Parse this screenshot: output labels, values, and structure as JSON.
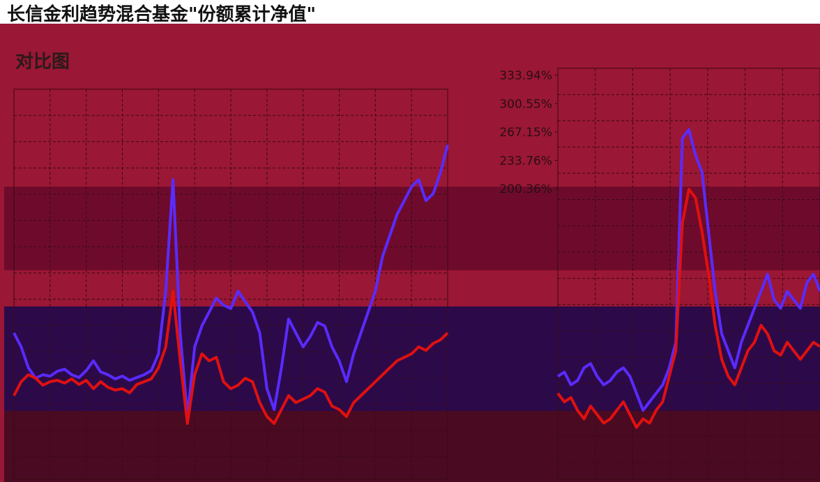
{
  "title": "长信金利趋势混合基金\"份额累计净值\"",
  "subtitle": "对比图",
  "colors": {
    "background": "#9a1735",
    "grid": "#3a0a14",
    "series_fund": "#5a2bff",
    "series_benchmark": "#e01010"
  },
  "chart_data": [
    {
      "type": "line",
      "title": "",
      "xlabel": "",
      "ylabel": "",
      "grid": true,
      "ylim": [
        -100,
        400
      ],
      "x": [
        0,
        1,
        2,
        3,
        4,
        5,
        6,
        7,
        8,
        9,
        10,
        11,
        12,
        13,
        14,
        15,
        16,
        17,
        18,
        19,
        20,
        21,
        22,
        23,
        24,
        25,
        26,
        27,
        28,
        29,
        30,
        31,
        32,
        33,
        34,
        35,
        36,
        37,
        38,
        39,
        40,
        41,
        42,
        43,
        44,
        45,
        46,
        47,
        48,
        49,
        50,
        51,
        52,
        53,
        54,
        55,
        56,
        57,
        58,
        59,
        60
      ],
      "series": [
        {
          "values": [
            60,
            40,
            10,
            -5,
            0,
            -2,
            5,
            8,
            0,
            -4,
            6,
            20,
            4,
            0,
            -6,
            -2,
            -8,
            -4,
            0,
            6,
            30,
            120,
            280,
            60,
            -60,
            40,
            70,
            90,
            110,
            100,
            95,
            120,
            105,
            90,
            60,
            -20,
            -50,
            10,
            80,
            60,
            40,
            55,
            75,
            70,
            40,
            20,
            -10,
            30,
            60,
            90,
            120,
            170,
            200,
            230,
            250,
            270,
            280,
            250,
            260,
            290,
            330
          ]
        },
        {
          "values": [
            -30,
            -10,
            0,
            -5,
            -15,
            -10,
            -8,
            -12,
            -6,
            -14,
            -8,
            -20,
            -10,
            -18,
            -22,
            -20,
            -26,
            -14,
            -10,
            -6,
            10,
            40,
            120,
            20,
            -70,
            0,
            30,
            20,
            25,
            -10,
            -20,
            -15,
            -5,
            -10,
            -40,
            -60,
            -70,
            -50,
            -30,
            -40,
            -35,
            -30,
            -20,
            -25,
            -45,
            -50,
            -60,
            -40,
            -30,
            -20,
            -10,
            0,
            10,
            20,
            25,
            30,
            40,
            35,
            45,
            50,
            60
          ]
        }
      ]
    },
    {
      "type": "line",
      "title": "",
      "xlabel": "",
      "ylabel": "",
      "grid": true,
      "ylim": [
        -100,
        333.94
      ],
      "yticks": [
        "333.94%",
        "300.55%",
        "267.15%",
        "233.76%",
        "200.36%"
      ],
      "x": [
        0,
        1,
        2,
        3,
        4,
        5,
        6,
        7,
        8,
        9,
        10,
        11,
        12,
        13,
        14,
        15,
        16,
        17,
        18,
        19,
        20,
        21,
        22,
        23,
        24,
        25,
        26,
        27,
        28,
        29,
        30,
        31,
        32,
        33,
        34,
        35,
        36,
        37,
        38,
        39,
        40
      ],
      "series": [
        {
          "values": [
            -20,
            -15,
            -30,
            -25,
            -10,
            -5,
            -20,
            -30,
            -25,
            -15,
            -10,
            -20,
            -40,
            -60,
            -50,
            -40,
            -30,
            -10,
            20,
            260,
            270,
            240,
            220,
            150,
            80,
            30,
            10,
            -10,
            20,
            40,
            60,
            80,
            100,
            70,
            60,
            80,
            70,
            60,
            90,
            100,
            80
          ]
        },
        {
          "values": [
            -40,
            -50,
            -45,
            -60,
            -70,
            -55,
            -65,
            -75,
            -70,
            -60,
            -50,
            -65,
            -80,
            -70,
            -75,
            -60,
            -50,
            -20,
            10,
            160,
            200,
            190,
            150,
            100,
            40,
            0,
            -20,
            -30,
            -10,
            10,
            20,
            40,
            30,
            10,
            5,
            20,
            10,
            0,
            10,
            20,
            15
          ]
        }
      ]
    }
  ]
}
